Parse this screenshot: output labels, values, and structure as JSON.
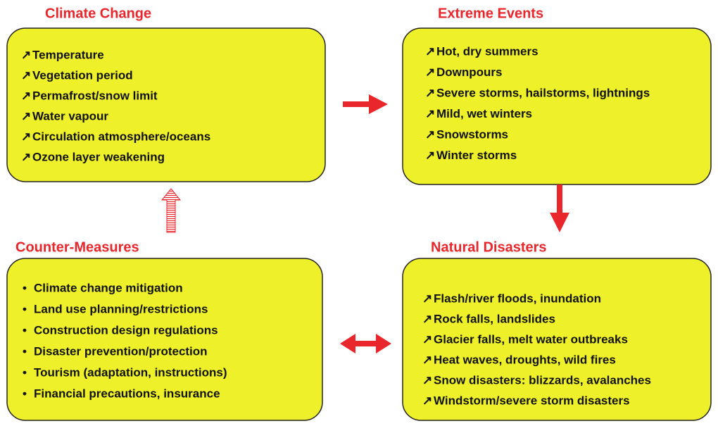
{
  "boxes": [
    {
      "title": "Climate Change",
      "marker": "↗",
      "items": [
        "Temperature",
        "Vegetation period",
        "Permafrost/snow limit",
        "Water vapour",
        "Circulation atmosphere/oceans",
        "Ozone layer weakening"
      ]
    },
    {
      "title": "Extreme Events",
      "marker": "↗",
      "items": [
        "Hot, dry summers",
        "Downpours",
        "Severe storms, hailstorms, lightnings",
        "Mild, wet winters",
        "Snowstorms",
        "Winter storms"
      ]
    },
    {
      "title": "Counter-Measures",
      "marker": "•",
      "items": [
        "Climate change mitigation",
        "Land use planning/restrictions",
        "Construction design regulations",
        "Disaster prevention/protection",
        "Tourism (adaptation, instructions)",
        "Financial precautions, insurance"
      ]
    },
    {
      "title": "Natural Disasters",
      "marker": "↗",
      "items": [
        "Flash/river floods, inundation",
        "Rock falls, landslides",
        "Glacier falls, melt water outbreaks",
        "Heat waves, droughts, wild fires",
        "Snow disasters: blizzards, avalanches",
        "Windstorm/severe storm disasters"
      ]
    }
  ]
}
